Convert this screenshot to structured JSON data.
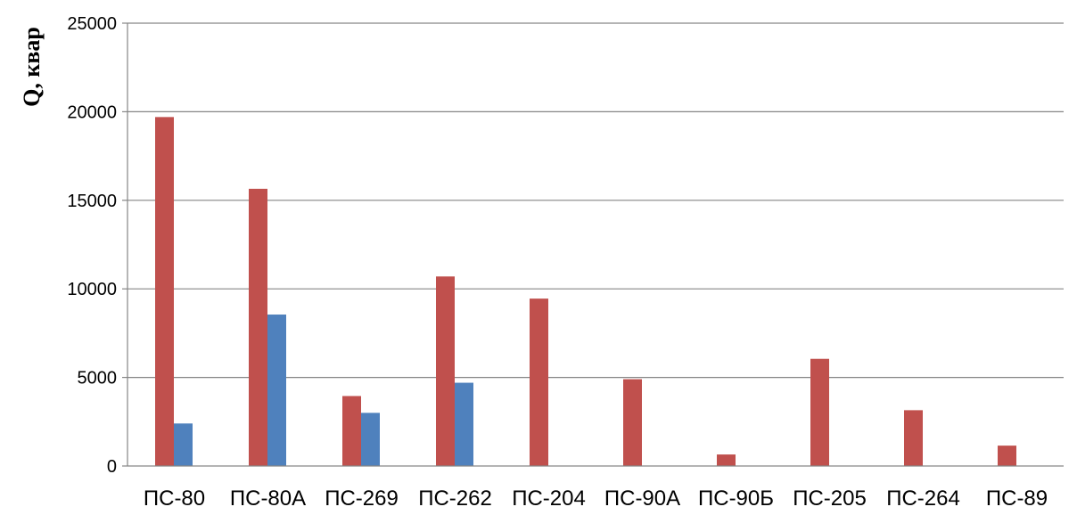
{
  "chart_data": {
    "type": "bar",
    "title": "",
    "xlabel": "",
    "ylabel": "Q, квар",
    "ylim": [
      0,
      25000
    ],
    "yticks": [
      0,
      5000,
      10000,
      15000,
      20000,
      25000
    ],
    "grid": true,
    "legend": "none",
    "categories": [
      "ПС-80",
      "ПС-80А",
      "ПС-269",
      "ПС-262",
      "ПС-204",
      "ПС-90А",
      "ПС-90Б",
      "ПС-205",
      "ПС-264",
      "ПС-89"
    ],
    "series": [
      {
        "color": "#c0504d",
        "values": [
          19700,
          15650,
          3950,
          10700,
          9450,
          4900,
          650,
          6050,
          3150,
          1150
        ]
      },
      {
        "color": "#4f81bd",
        "values": [
          2400,
          8550,
          3000,
          4700,
          0,
          0,
          0,
          0,
          0,
          0
        ]
      }
    ]
  }
}
